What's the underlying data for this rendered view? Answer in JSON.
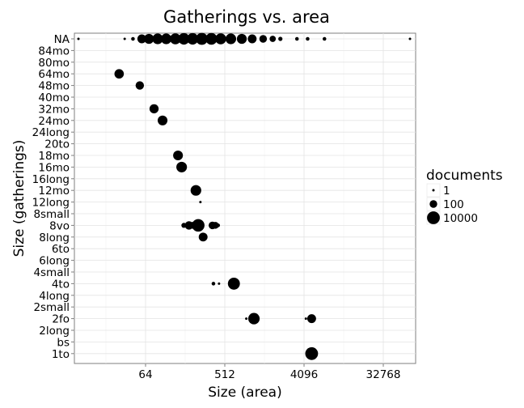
{
  "chart_data": {
    "type": "scatter",
    "title": "Gatherings vs. area",
    "xlabel": "Size (area)",
    "ylabel": "Size (gatherings)",
    "x_scale": "log2",
    "x_ticks": [
      64,
      512,
      4096,
      32768
    ],
    "x_tick_labels": [
      "64",
      "512",
      "4096",
      "32768"
    ],
    "categories": [
      "1to",
      "bs",
      "2long",
      "2fo",
      "2small",
      "4long",
      "4to",
      "4small",
      "6long",
      "6to",
      "8long",
      "8vo",
      "8small",
      "12long",
      "12mo",
      "16long",
      "16mo",
      "18mo",
      "20to",
      "24long",
      "24mo",
      "32mo",
      "40mo",
      "48mo",
      "64mo",
      "80mo",
      "84mo",
      "NA"
    ],
    "grid": true,
    "legend": {
      "title": "documents",
      "position": "right",
      "entries": [
        {
          "label": "1",
          "value": 1
        },
        {
          "label": "100",
          "value": 100
        },
        {
          "label": "10000",
          "value": 10000
        }
      ]
    },
    "points": [
      {
        "x": 5000,
        "y": "1to",
        "documents": 10000
      },
      {
        "x": 4500,
        "y": "1to",
        "documents": 1
      },
      {
        "x": 5000,
        "y": "2fo",
        "documents": 300
      },
      {
        "x": 4300,
        "y": "2fo",
        "documents": 1
      },
      {
        "x": 1100,
        "y": "2fo",
        "documents": 3000
      },
      {
        "x": 900,
        "y": "2fo",
        "documents": 1
      },
      {
        "x": 650,
        "y": "4to",
        "documents": 5000
      },
      {
        "x": 380,
        "y": "4to",
        "documents": 3
      },
      {
        "x": 440,
        "y": "4to",
        "documents": 1
      },
      {
        "x": 290,
        "y": "8long",
        "documents": 300
      },
      {
        "x": 255,
        "y": "8vo",
        "documents": 8000
      },
      {
        "x": 200,
        "y": "8vo",
        "documents": 200
      },
      {
        "x": 175,
        "y": "8vo",
        "documents": 10
      },
      {
        "x": 220,
        "y": "8vo",
        "documents": 50
      },
      {
        "x": 370,
        "y": "8vo",
        "documents": 100
      },
      {
        "x": 400,
        "y": "8vo",
        "documents": 50
      },
      {
        "x": 430,
        "y": "8vo",
        "documents": 3
      },
      {
        "x": 270,
        "y": "12long",
        "documents": 1
      },
      {
        "x": 240,
        "y": "12mo",
        "documents": 1500
      },
      {
        "x": 165,
        "y": "16mo",
        "documents": 1500
      },
      {
        "x": 150,
        "y": "18mo",
        "documents": 700
      },
      {
        "x": 100,
        "y": "24mo",
        "documents": 700
      },
      {
        "x": 80,
        "y": "32mo",
        "documents": 400
      },
      {
        "x": 55,
        "y": "48mo",
        "documents": 200
      },
      {
        "x": 32,
        "y": "64mo",
        "documents": 500
      },
      {
        "x": 11,
        "y": "NA",
        "documents": 1
      },
      {
        "x": 37,
        "y": "NA",
        "documents": 1
      },
      {
        "x": 46,
        "y": "NA",
        "documents": 3
      },
      {
        "x": 58,
        "y": "NA",
        "documents": 300
      },
      {
        "x": 70,
        "y": "NA",
        "documents": 800
      },
      {
        "x": 88,
        "y": "NA",
        "documents": 1500
      },
      {
        "x": 110,
        "y": "NA",
        "documents": 1500
      },
      {
        "x": 140,
        "y": "NA",
        "documents": 2000
      },
      {
        "x": 175,
        "y": "NA",
        "documents": 3000
      },
      {
        "x": 220,
        "y": "NA",
        "documents": 3000
      },
      {
        "x": 280,
        "y": "NA",
        "documents": 5000
      },
      {
        "x": 360,
        "y": "NA",
        "documents": 4000
      },
      {
        "x": 460,
        "y": "NA",
        "documents": 2000
      },
      {
        "x": 600,
        "y": "NA",
        "documents": 1500
      },
      {
        "x": 800,
        "y": "NA",
        "documents": 800
      },
      {
        "x": 1050,
        "y": "NA",
        "documents": 300
      },
      {
        "x": 1400,
        "y": "NA",
        "documents": 100
      },
      {
        "x": 1800,
        "y": "NA",
        "documents": 30
      },
      {
        "x": 2200,
        "y": "NA",
        "documents": 5
      },
      {
        "x": 3400,
        "y": "NA",
        "documents": 3
      },
      {
        "x": 4500,
        "y": "NA",
        "documents": 3
      },
      {
        "x": 7000,
        "y": "NA",
        "documents": 3
      },
      {
        "x": 66000,
        "y": "NA",
        "documents": 1
      }
    ]
  }
}
